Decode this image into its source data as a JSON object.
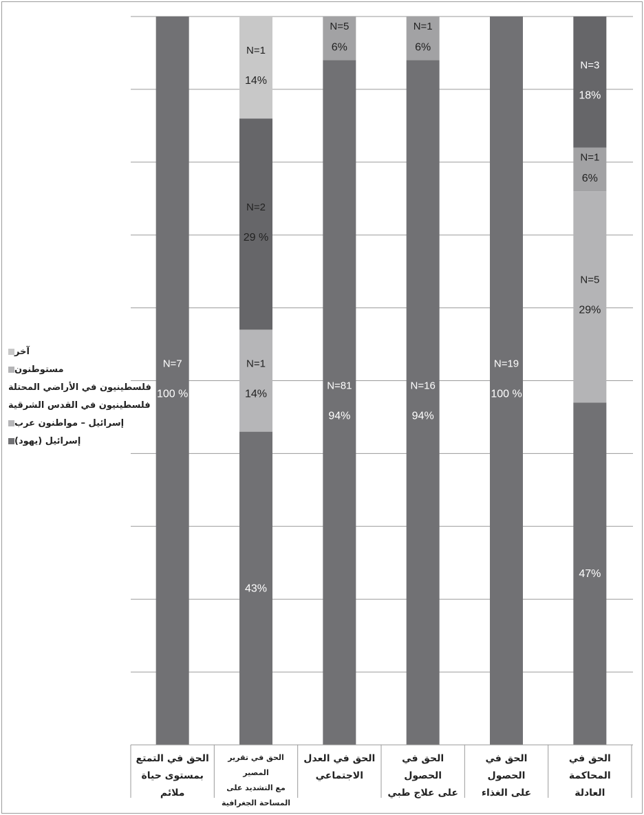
{
  "colors": {
    "grid": "#9a9a9a",
    "text_light": "#ffffff",
    "text_dark": "#222222"
  },
  "legend": {
    "items": [
      {
        "label": "آخر",
        "color": "#c8c8c8"
      },
      {
        "label": "مستوطنون",
        "color": "#b4b4b6"
      },
      {
        "label": "فلسطينيون في الأراضي المحتلة",
        "color": "#666669"
      },
      {
        "label": "فلسطينيون في القدس الشرقية",
        "color": "#a2a2a4"
      },
      {
        "label": "إسرائيل – مواطنون عرب",
        "color": "#b6b6b8"
      },
      {
        "label": "إسرائيل (يهود)",
        "color": "#717174"
      }
    ]
  },
  "chart_data": {
    "type": "bar",
    "stacked": true,
    "ylim": [
      0,
      100
    ],
    "grid": true,
    "legend_position": "left",
    "categories": [
      "الحق في التمتع بمستوى حياة ملائم",
      "الحق في تقرير المصير مع التشديد على المساحة الجغرافية",
      "الحق في العدل الاجتماعي",
      "الحق في الحصول على علاج طبي",
      "الحق في الحصول على الغذاء",
      "الحق في المحاكمة العادلة"
    ],
    "category_lines": [
      [
        "الحق في التمتع",
        "بمستوى حياة",
        "ملائم"
      ],
      [
        "الحق في تقرير المصير",
        "مع التشديد على",
        "المساحة الجغرافية"
      ],
      [
        "الحق في العدل",
        "الاجتماعي"
      ],
      [
        "الحق في الحصول",
        "على علاج طبي"
      ],
      [
        "الحق في الحصول",
        "على الغذاء"
      ],
      [
        "الحق في المحاكمة",
        "العادلة"
      ]
    ],
    "stacks": [
      [
        {
          "series": "إسرائيل (يهود)",
          "value": 100,
          "pct_label": "100 %",
          "n_label": "N=7",
          "color": "#717174",
          "text": "light"
        }
      ],
      [
        {
          "series": "إسرائيل (يهود)",
          "value": 43,
          "pct_label": "43%",
          "n_label": "",
          "color": "#717174",
          "text": "light"
        },
        {
          "series": "إسرائيل – مواطنون عرب",
          "value": 14,
          "pct_label": "14%",
          "n_label": "N=1",
          "color": "#b6b6b8",
          "text": "dark"
        },
        {
          "series": "فلسطينيون في الأراضي المحتلة",
          "value": 29,
          "pct_label": "29 %",
          "n_label": "N=2",
          "color": "#666669",
          "text": "dark"
        },
        {
          "series": "آخر",
          "value": 14,
          "pct_label": "14%",
          "n_label": "N=1",
          "color": "#c8c8c8",
          "text": "dark"
        }
      ],
      [
        {
          "series": "إسرائيل (يهود)",
          "value": 94,
          "pct_label": "94%",
          "n_label": "N=81",
          "color": "#717174",
          "text": "light"
        },
        {
          "series": "فلسطينيون في القدس الشرقية",
          "value": 6,
          "pct_label": "6%",
          "n_label": "N=5",
          "color": "#a2a2a4",
          "text": "dark"
        }
      ],
      [
        {
          "series": "إسرائيل (يهود)",
          "value": 94,
          "pct_label": "94%",
          "n_label": "N=16",
          "color": "#717174",
          "text": "light"
        },
        {
          "series": "فلسطينيون في القدس الشرقية",
          "value": 6,
          "pct_label": "6%",
          "n_label": "N=1",
          "color": "#a2a2a4",
          "text": "dark"
        }
      ],
      [
        {
          "series": "إسرائيل (يهود)",
          "value": 100,
          "pct_label": "100 %",
          "n_label": "N=19",
          "color": "#717174",
          "text": "light"
        }
      ],
      [
        {
          "series": "إسرائيل (يهود)",
          "value": 47,
          "pct_label": "47%",
          "n_label": "",
          "color": "#717174",
          "text": "light"
        },
        {
          "series": "مستوطنون",
          "value": 29,
          "pct_label": "29%",
          "n_label": "N=5",
          "color": "#b4b4b6",
          "text": "dark"
        },
        {
          "series": "فلسطينيون في القدس الشرقية",
          "value": 6,
          "pct_label": "6%",
          "n_label": "N=1",
          "color": "#a2a2a4",
          "text": "dark"
        },
        {
          "series": "فلسطينيون في الأراضي المحتلة",
          "value": 18,
          "pct_label": "18%",
          "n_label": "N=3",
          "color": "#666669",
          "text": "light"
        }
      ]
    ]
  }
}
